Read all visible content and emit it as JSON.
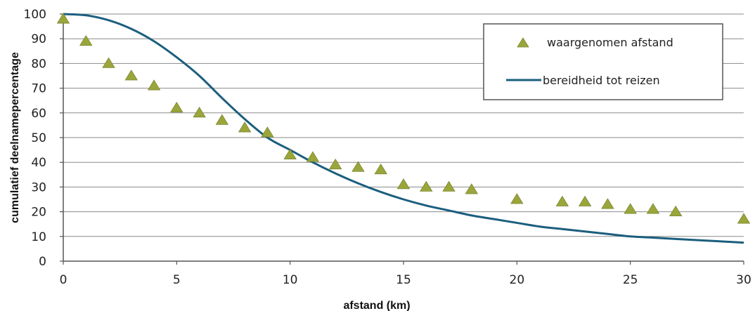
{
  "chart_data": {
    "type": "scatter",
    "title": "",
    "xlabel": "afstand (km)",
    "ylabel": "cumulatief deelnamepercentage",
    "xlim": [
      0,
      30
    ],
    "ylim": [
      0,
      100
    ],
    "xticks": [
      0,
      5,
      10,
      15,
      20,
      25,
      30
    ],
    "yticks": [
      0,
      10,
      20,
      30,
      40,
      50,
      60,
      70,
      80,
      90,
      100
    ],
    "xtick_labels": [
      "0",
      "5",
      "10",
      "15",
      "20",
      "25",
      "30"
    ],
    "ytick_labels": [
      "0",
      "10",
      "20",
      "30",
      "40",
      "50",
      "60",
      "70",
      "80",
      "90",
      "100"
    ],
    "grid": "horizontal",
    "legend_position": "top-right",
    "series": [
      {
        "name": "waargenomen afstand",
        "type": "scatter",
        "marker": "triangle",
        "color": "#9aa63a",
        "x": [
          0,
          1,
          2,
          3,
          4,
          5,
          6,
          7,
          8,
          9,
          10,
          11,
          12,
          13,
          14,
          15,
          16,
          17,
          18,
          20,
          22,
          23,
          24,
          25,
          26,
          27,
          30
        ],
        "y": [
          98,
          89,
          80,
          75,
          71,
          62,
          60,
          57,
          54,
          52,
          43,
          42,
          39,
          38,
          37,
          31,
          30,
          30,
          29,
          25,
          24,
          24,
          23,
          21,
          21,
          20,
          17
        ]
      },
      {
        "name": "bereidheid tot reizen",
        "type": "line",
        "color": "#1b5e7e",
        "x": [
          0,
          1,
          2,
          3,
          4,
          5,
          6,
          7,
          8,
          9,
          10,
          11,
          12,
          13,
          14,
          15,
          16,
          17,
          18,
          19,
          20,
          21,
          22,
          23,
          24,
          25,
          26,
          27,
          28,
          29,
          30
        ],
        "y": [
          100,
          99.5,
          97.5,
          94,
          89,
          82.5,
          75,
          66,
          57.5,
          50,
          45,
          40,
          35.5,
          31.5,
          28,
          25,
          22.5,
          20.5,
          18.5,
          17,
          15.5,
          14,
          13,
          12,
          11,
          10,
          9.5,
          9,
          8.5,
          8,
          7.5
        ]
      }
    ],
    "legend": {
      "entries": [
        "waargenomen afstand",
        "bereidheid tot reizen"
      ]
    }
  }
}
